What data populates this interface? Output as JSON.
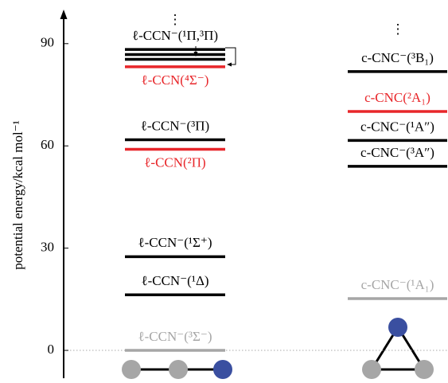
{
  "chart_data": {
    "type": "levels",
    "y_label": "potential energy/kcal mol⁻¹",
    "ylim": [
      -7,
      100
    ],
    "yticks": [
      0,
      30,
      60,
      90
    ],
    "reference_line": 0,
    "continuation": "⋮",
    "series": [
      {
        "values": [
          0,
          16.3,
          27.5,
          59,
          61.8,
          83.2,
          85.4,
          86.8,
          88.3
        ],
        "labels": [
          "ℓ-CCN⁻(³Σ⁻)",
          "ℓ-CCN⁻(¹Δ)",
          "ℓ-CCN⁻(¹Σ⁺)",
          "ℓ-CCN(²Π)",
          "ℓ-CCN⁻(³Π)",
          "ℓ-CCN(⁴Σ⁻)",
          null,
          null,
          "ℓ-CCN⁻(¹Π,³Π)"
        ],
        "colors": [
          "#a6a6a6",
          "#000000",
          "#000000",
          "#e8262a",
          "#000000",
          "#e8262a",
          "#000000",
          "#000000",
          "#000000"
        ]
      },
      {
        "values": [
          15.2,
          54,
          61.6,
          70.1,
          81.8
        ],
        "labels": [
          "c-CNC⁻(¹A₁)",
          "c-CNC⁻(³A″)",
          "c-CNC⁻(¹A″)",
          "c-CNC(²A₁)",
          "c-CNC⁻(³B₁)"
        ],
        "colors": [
          "#a6a6a6",
          "#000000",
          "#000000",
          "#e8262a",
          "#000000"
        ]
      }
    ]
  }
}
